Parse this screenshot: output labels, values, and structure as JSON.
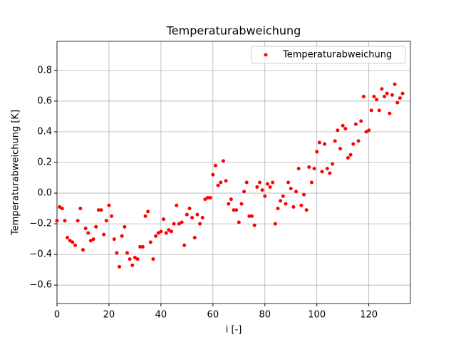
{
  "chart_data": {
    "type": "scatter",
    "title": "Temperaturabweichung",
    "xlabel": "i [-]",
    "ylabel": "Temperaturabweichung [K]",
    "series": [
      {
        "name": "Temperaturabweichung",
        "color": "#ff0000",
        "x": [
          0,
          1,
          2,
          3,
          4,
          5,
          6,
          7,
          8,
          9,
          10,
          11,
          12,
          13,
          14,
          15,
          16,
          17,
          18,
          19,
          20,
          21,
          22,
          23,
          24,
          25,
          26,
          27,
          28,
          29,
          30,
          31,
          32,
          33,
          34,
          35,
          36,
          37,
          38,
          39,
          40,
          41,
          42,
          43,
          44,
          45,
          46,
          47,
          48,
          49,
          50,
          51,
          52,
          53,
          54,
          55,
          56,
          57,
          58,
          59,
          60,
          61,
          62,
          63,
          64,
          65,
          66,
          67,
          68,
          69,
          70,
          71,
          72,
          73,
          74,
          75,
          76,
          77,
          78,
          79,
          80,
          81,
          82,
          83,
          84,
          85,
          86,
          87,
          88,
          89,
          90,
          91,
          92,
          93,
          94,
          95,
          96,
          97,
          98,
          99,
          100,
          101,
          102,
          103,
          104,
          105,
          106,
          107,
          108,
          109,
          110,
          111,
          112,
          113,
          114,
          115,
          116,
          117,
          118,
          119,
          120,
          121,
          122,
          123,
          124,
          125,
          126,
          127,
          128,
          129,
          130,
          131,
          132,
          133
        ],
        "values": [
          -0.18,
          -0.09,
          -0.1,
          -0.18,
          -0.29,
          -0.31,
          -0.32,
          -0.34,
          -0.18,
          -0.1,
          -0.37,
          -0.23,
          -0.26,
          -0.31,
          -0.3,
          -0.22,
          -0.11,
          -0.11,
          -0.27,
          -0.18,
          -0.08,
          -0.15,
          -0.3,
          -0.39,
          -0.48,
          -0.28,
          -0.22,
          -0.39,
          -0.43,
          -0.47,
          -0.42,
          -0.43,
          -0.35,
          -0.35,
          -0.15,
          -0.12,
          -0.32,
          -0.43,
          -0.28,
          -0.26,
          -0.25,
          -0.17,
          -0.26,
          -0.24,
          -0.25,
          -0.2,
          -0.08,
          -0.2,
          -0.19,
          -0.34,
          -0.14,
          -0.1,
          -0.16,
          -0.29,
          -0.14,
          -0.2,
          -0.16,
          -0.04,
          -0.03,
          -0.03,
          0.12,
          0.18,
          0.05,
          0.07,
          0.21,
          0.08,
          -0.07,
          -0.04,
          -0.11,
          -0.11,
          -0.19,
          -0.07,
          0.01,
          0.07,
          -0.15,
          -0.15,
          -0.21,
          0.04,
          0.07,
          0.02,
          -0.02,
          0.06,
          0.04,
          0.07,
          -0.2,
          -0.1,
          -0.05,
          -0.02,
          -0.07,
          0.07,
          0.03,
          -0.09,
          0.01,
          0.16,
          -0.08,
          -0.01,
          -0.11,
          0.17,
          0.07,
          0.16,
          0.27,
          0.33,
          0.14,
          0.32,
          0.16,
          0.13,
          0.19,
          0.34,
          0.41,
          0.29,
          0.44,
          0.42,
          0.23,
          0.25,
          0.32,
          0.45,
          0.34,
          0.47,
          0.63,
          0.4,
          0.41,
          0.54,
          0.63,
          0.61,
          0.54,
          0.68,
          0.63,
          0.65,
          0.52,
          0.64,
          0.71,
          0.59,
          0.62,
          0.65
        ]
      }
    ],
    "xlim": [
      0,
      136
    ],
    "ylim": [
      -0.72,
      0.99
    ],
    "xticks": [
      0,
      20,
      40,
      60,
      80,
      100,
      120
    ],
    "yticks": [
      {
        "value": -0.6,
        "label": "−0.6"
      },
      {
        "value": -0.4,
        "label": "−0.4"
      },
      {
        "value": -0.2,
        "label": "−0.2"
      },
      {
        "value": 0,
        "label": "0.0"
      },
      0.2,
      0.4,
      0.6,
      0.8
    ],
    "grid": true,
    "legend": "upper right"
  }
}
